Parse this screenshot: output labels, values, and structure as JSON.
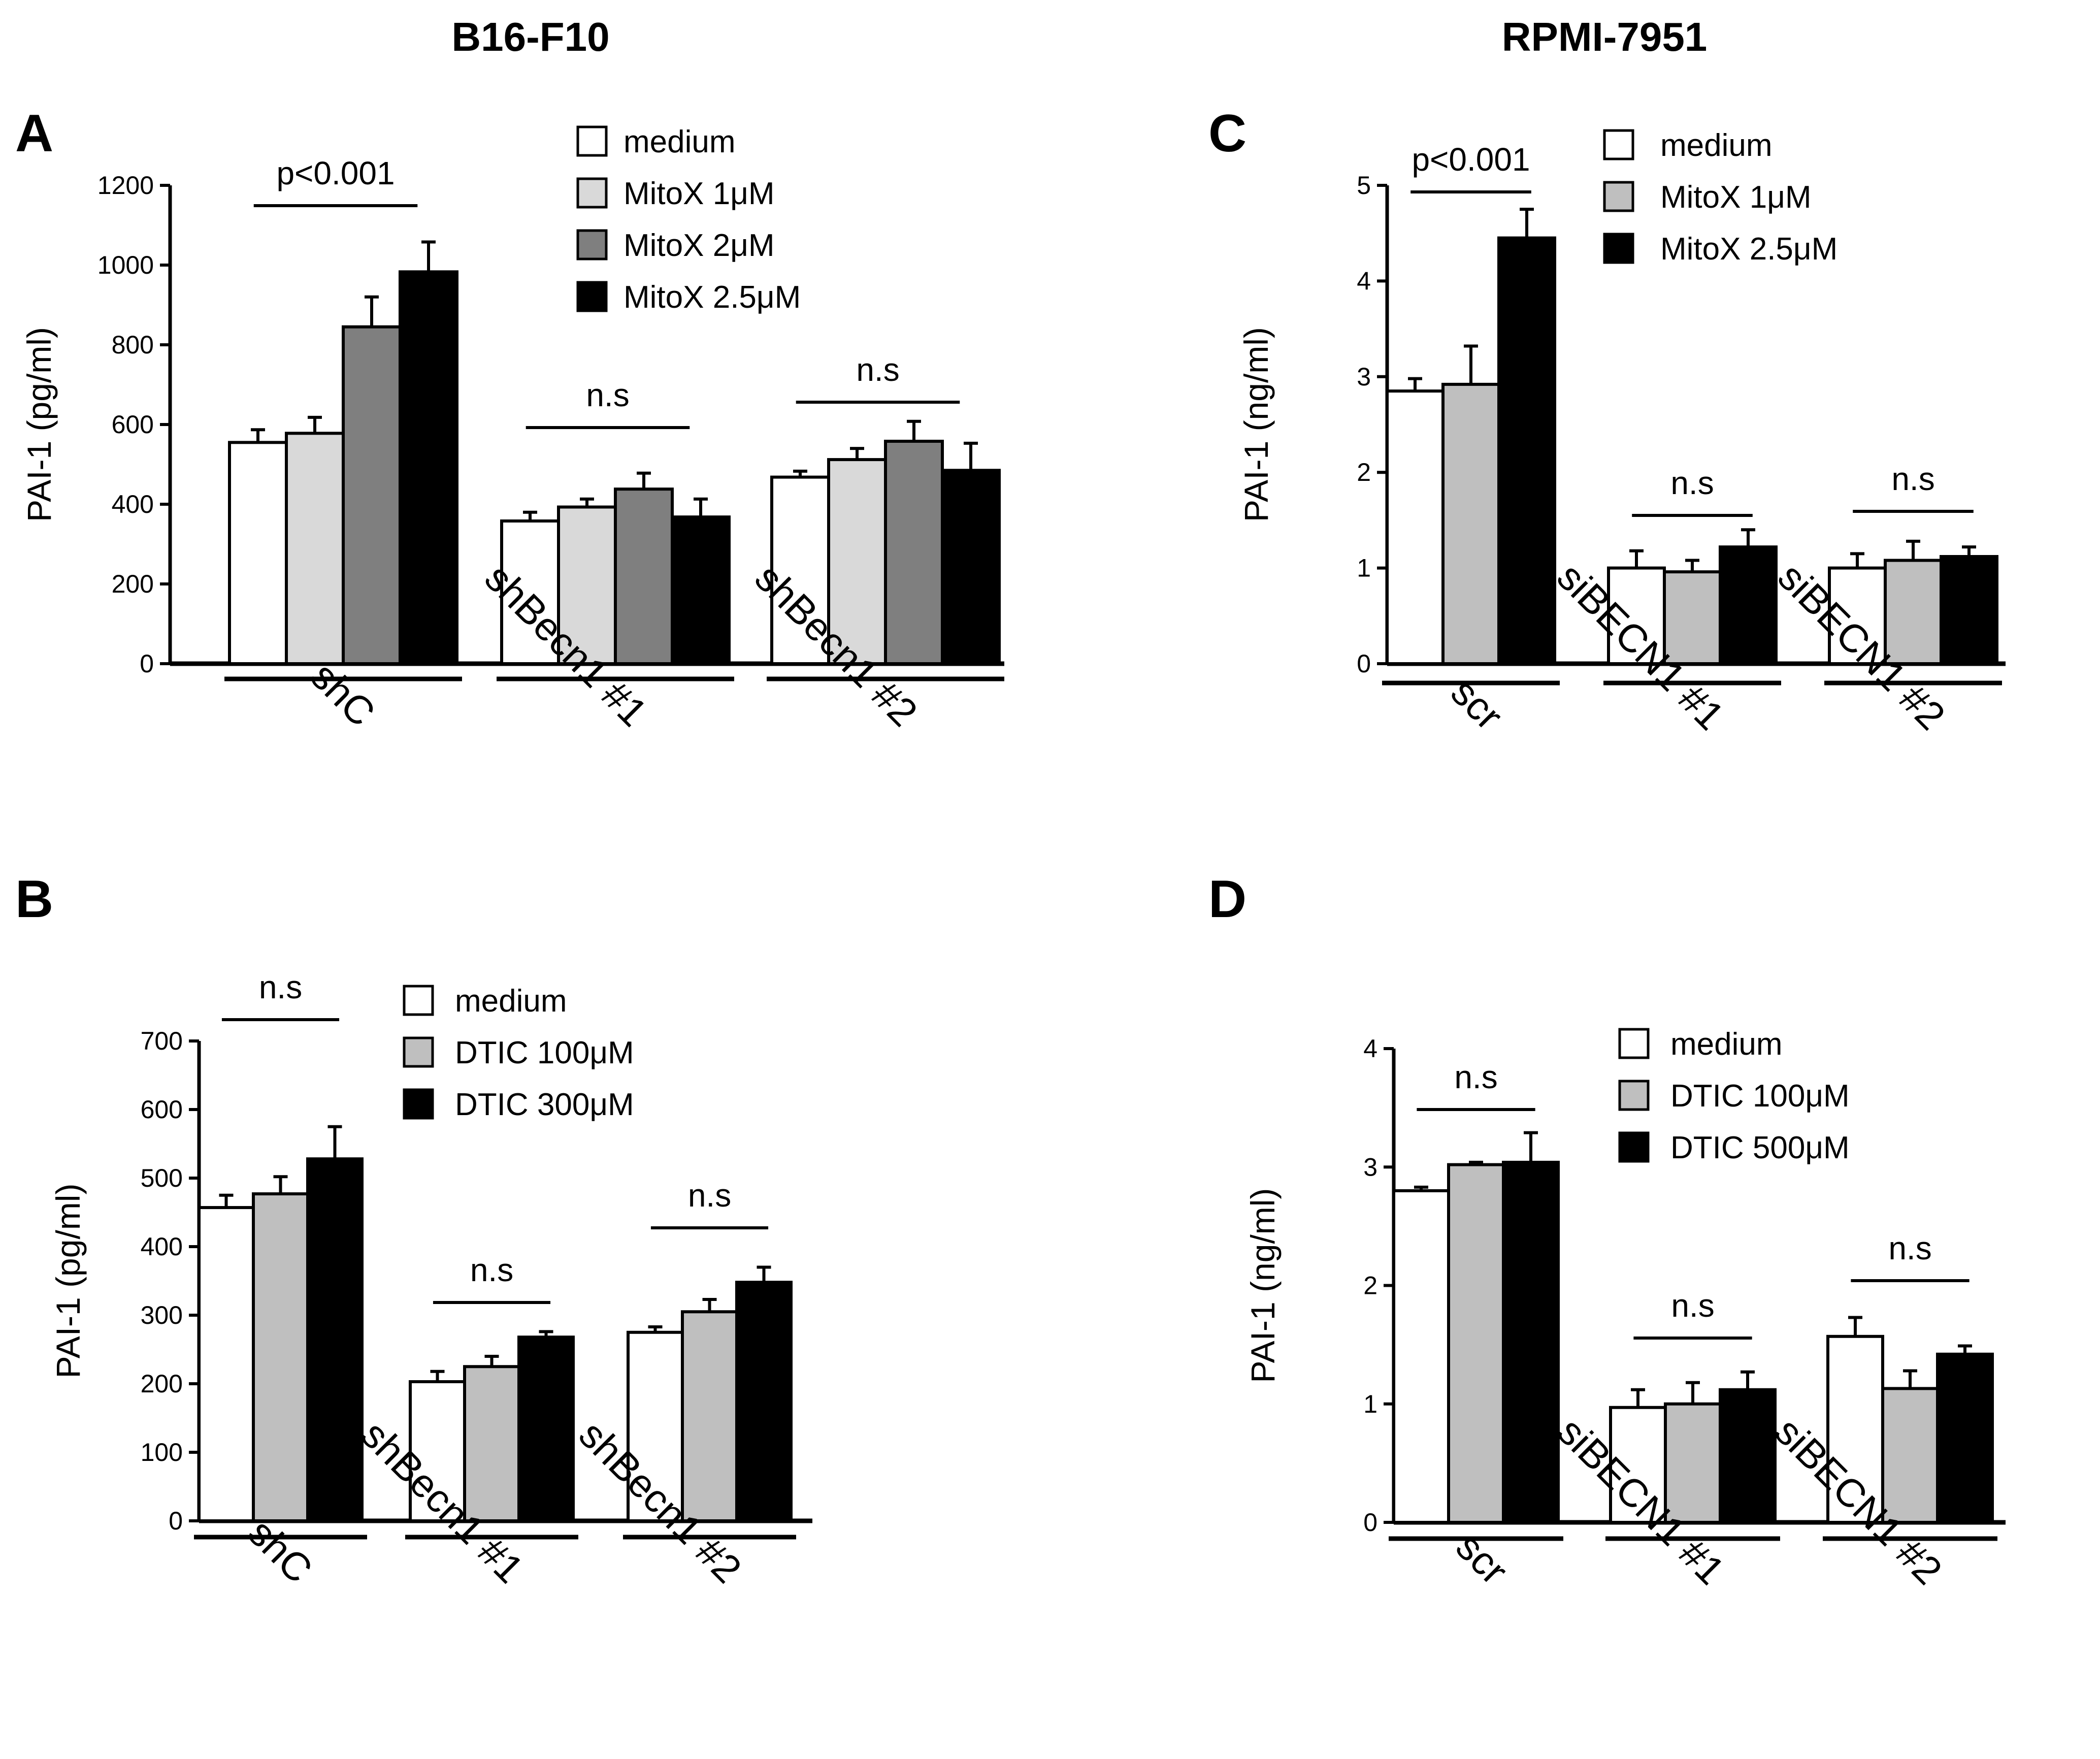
{
  "headers": {
    "left": "B16-F10",
    "right": "RPMI-7951"
  },
  "chart_data": [
    {
      "panel": "A",
      "type": "bar",
      "ylabel": "PAI-1 (pg/ml)",
      "ylim": [
        0,
        1200
      ],
      "yticks": [
        0,
        200,
        400,
        600,
        800,
        1000,
        1200
      ],
      "categories": [
        "shC",
        "shBecn1 #1",
        "shBecn1 #2"
      ],
      "series": [
        {
          "name": "medium",
          "color": "#ffffff",
          "values": [
            555,
            358,
            468
          ],
          "errors": [
            32,
            22,
            15
          ]
        },
        {
          "name": "MitoX 1μM",
          "color": "#d9d9d9",
          "values": [
            578,
            393,
            512
          ],
          "errors": [
            40,
            20,
            28
          ]
        },
        {
          "name": "MitoX 2μM",
          "color": "#7f7f7f",
          "values": [
            845,
            438,
            558
          ],
          "errors": [
            75,
            40,
            50
          ]
        },
        {
          "name": "MitoX 2.5μM",
          "color": "#000000",
          "values": [
            983,
            368,
            485
          ],
          "errors": [
            75,
            45,
            68
          ]
        }
      ],
      "significance": [
        "p<0.001",
        "n.s",
        "n.s"
      ]
    },
    {
      "panel": "B",
      "type": "bar",
      "ylabel": "PAI-1 (pg/ml)",
      "ylim": [
        0,
        700
      ],
      "yticks": [
        0,
        100,
        200,
        300,
        400,
        500,
        600,
        700
      ],
      "categories": [
        "shC",
        "shBecn1 #1",
        "shBecn1 #2"
      ],
      "series": [
        {
          "name": "medium",
          "color": "#ffffff",
          "values": [
            457,
            203,
            275
          ],
          "errors": [
            18,
            15,
            8
          ]
        },
        {
          "name": "DTIC 100μM",
          "color": "#bfbfbf",
          "values": [
            477,
            225,
            305
          ],
          "errors": [
            25,
            15,
            18
          ]
        },
        {
          "name": "DTIC 300μM",
          "color": "#000000",
          "values": [
            528,
            268,
            348
          ],
          "errors": [
            47,
            8,
            22
          ]
        }
      ],
      "significance": [
        "n.s",
        "n.s",
        "n.s"
      ]
    },
    {
      "panel": "C",
      "type": "bar",
      "ylabel": "PAI-1 (ng/ml)",
      "ylim": [
        0,
        5
      ],
      "yticks": [
        0,
        1,
        2,
        3,
        4,
        5
      ],
      "categories": [
        "scr",
        "siBECN1 #1",
        "siBECN1 #2"
      ],
      "series": [
        {
          "name": "medium",
          "color": "#ffffff",
          "values": [
            2.85,
            1.0,
            1.0
          ],
          "errors": [
            0.13,
            0.18,
            0.15
          ]
        },
        {
          "name": "MitoX 1μM",
          "color": "#bfbfbf",
          "values": [
            2.92,
            0.96,
            1.08
          ],
          "errors": [
            0.4,
            0.12,
            0.2
          ]
        },
        {
          "name": "MitoX 2.5μM",
          "color": "#000000",
          "values": [
            4.45,
            1.22,
            1.12
          ],
          "errors": [
            0.3,
            0.18,
            0.1
          ]
        }
      ],
      "significance": [
        "p<0.001",
        "n.s",
        "n.s"
      ]
    },
    {
      "panel": "D",
      "type": "bar",
      "ylabel": "PAI-1 (ng/ml)",
      "ylim": [
        0,
        4
      ],
      "yticks": [
        0,
        1,
        2,
        3,
        4
      ],
      "categories": [
        "scr",
        "siBECN1 #1",
        "siBECN1 #2"
      ],
      "series": [
        {
          "name": "medium",
          "color": "#ffffff",
          "values": [
            2.8,
            0.97,
            1.57
          ],
          "errors": [
            0.03,
            0.15,
            0.16
          ]
        },
        {
          "name": "DTIC 100μM",
          "color": "#bfbfbf",
          "values": [
            3.02,
            1.0,
            1.13
          ],
          "errors": [
            0.02,
            0.18,
            0.15
          ]
        },
        {
          "name": "DTIC 500μM",
          "color": "#000000",
          "values": [
            3.04,
            1.12,
            1.42
          ],
          "errors": [
            0.25,
            0.15,
            0.07
          ]
        }
      ],
      "significance": [
        "n.s",
        "n.s",
        "n.s"
      ]
    }
  ]
}
